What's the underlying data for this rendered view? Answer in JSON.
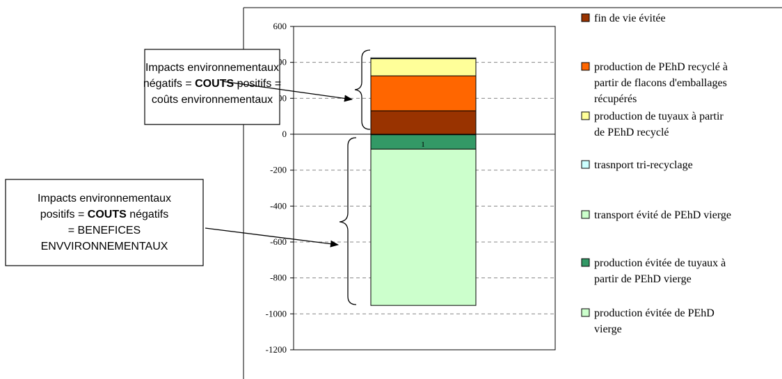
{
  "chart_data": {
    "type": "bar",
    "stacked": true,
    "title": "",
    "xlabel": "",
    "ylabel": "",
    "ylim": [
      -1200,
      600
    ],
    "y_ticks": [
      "600",
      "400",
      "200",
      "0",
      "-200",
      "-400",
      "-600",
      "-800",
      "-1000",
      "-1200"
    ],
    "grid": "horizontal dashed",
    "legend_position": "right",
    "data_label": "1",
    "series": [
      {
        "name": "fin de vie évitée",
        "value": 130,
        "color": "#993300"
      },
      {
        "name": "production de PEhD recyclé à partir de flacons d'emballages récupérés",
        "value": 195,
        "color": "#FF6600"
      },
      {
        "name": "production de tuyaux à partir de PEhD recyclé",
        "value": 95,
        "color": "#FFFF99"
      },
      {
        "name": "trasnport tri-recyclage",
        "value": 5,
        "color": "#CCFFFF"
      },
      {
        "name": "transport évité de PEhD vierge",
        "value": -3,
        "color": "#CCFFCC"
      },
      {
        "name": "production évitée de tuyaux à partir de PEhD vierge",
        "value": -80,
        "color": "#339966"
      },
      {
        "name": "production évitée de PEhD vierge",
        "value": -870,
        "color": "#CCFFCC"
      }
    ],
    "legend": [
      {
        "lines": [
          "fin de vie évitée"
        ],
        "color": "#993300"
      },
      {
        "lines": [
          "production de PEhD recyclé à",
          "partir de flacons d'emballages",
          "récupérés"
        ],
        "color": "#FF6600"
      },
      {
        "lines": [
          "production de tuyaux à partir",
          "de PEhD recyclé"
        ],
        "color": "#FFFF99"
      },
      {
        "lines": [
          "trasnport tri-recyclage"
        ],
        "color": "#CCFFFF"
      },
      {
        "lines": [
          "transport évité de PEhD vierge"
        ],
        "color": "#CCFFCC"
      },
      {
        "lines": [
          "production évitée de tuyaux à",
          "partir de PEhD vierge"
        ],
        "color": "#339966"
      },
      {
        "lines": [
          "production évitée de PEhD",
          "vierge"
        ],
        "color": "#CCFFCC"
      }
    ]
  },
  "annotations": {
    "positive": {
      "lines": [
        [
          {
            "t": "Impacts environnementaux",
            "b": false
          }
        ],
        [
          {
            "t": "négatifs = ",
            "b": false
          },
          {
            "t": "COUTS",
            "b": true
          },
          {
            "t": " positifs =",
            "b": false
          }
        ],
        [
          {
            "t": "coûts environnementaux",
            "b": false
          }
        ]
      ]
    },
    "negative": {
      "lines": [
        [
          {
            "t": "Impacts environnementaux",
            "b": false
          }
        ],
        [
          {
            "t": "positifs = ",
            "b": false
          },
          {
            "t": "COUTS",
            "b": true
          },
          {
            "t": " négatifs",
            "b": false
          }
        ],
        [
          {
            "t": "= BENEFICES",
            "b": false
          }
        ],
        [
          {
            "t": "ENVVIRONNEMENTAUX",
            "b": false
          }
        ]
      ]
    }
  }
}
